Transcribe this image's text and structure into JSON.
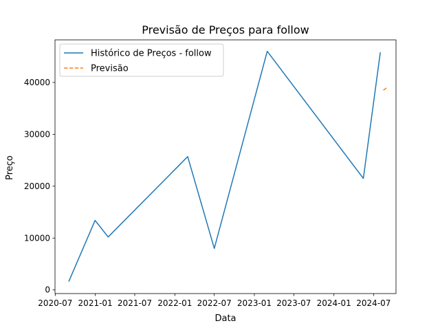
{
  "chart_data": {
    "type": "line",
    "title": "Previsão de Preços para follow",
    "xlabel": "Data",
    "ylabel": "Preço",
    "x_ticks": [
      "2020-07",
      "2021-01",
      "2021-07",
      "2022-01",
      "2022-07",
      "2023-01",
      "2023-07",
      "2024-01",
      "2024-07"
    ],
    "y_ticks": [
      0,
      10000,
      20000,
      30000,
      40000
    ],
    "xlim": [
      "2020-06-30",
      "2024-10-12"
    ],
    "ylim": [
      -700,
      48200
    ],
    "legend_position": "top-left",
    "grid": false,
    "series": [
      {
        "name": "Histórico de Preços - follow",
        "color": "#1f77b4",
        "style": "solid",
        "points": [
          {
            "x": "2020-09-01",
            "y": 1600
          },
          {
            "x": "2020-12-31",
            "y": 13400
          },
          {
            "x": "2021-03-01",
            "y": 10200
          },
          {
            "x": "2022-03-01",
            "y": 25700
          },
          {
            "x": "2022-07-01",
            "y": 8000
          },
          {
            "x": "2023-03-01",
            "y": 46000
          },
          {
            "x": "2024-05-15",
            "y": 21500
          },
          {
            "x": "2024-08-01",
            "y": 45800
          }
        ]
      },
      {
        "name": "Previsão",
        "color": "#ff7f0e",
        "style": "dashed",
        "points": [
          {
            "x": "2024-08-15",
            "y": 38500
          },
          {
            "x": "2024-09-01",
            "y": 39000
          }
        ]
      }
    ]
  }
}
